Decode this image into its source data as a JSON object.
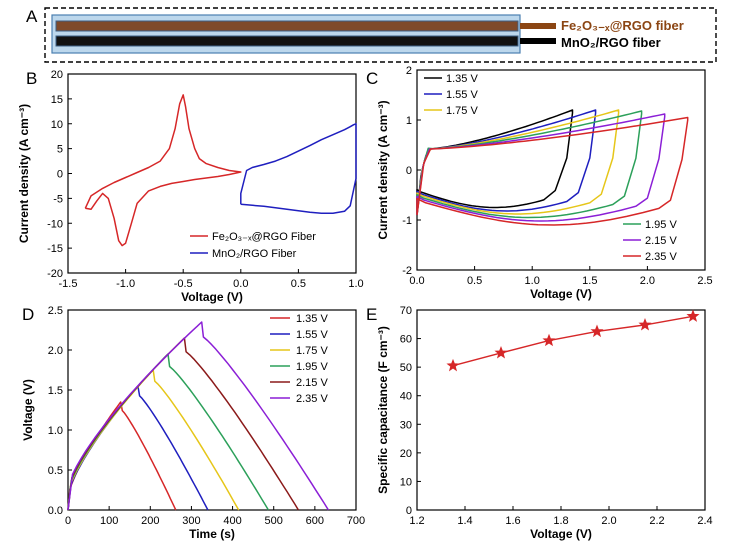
{
  "panel_letters": [
    "A",
    "B",
    "C",
    "D",
    "E"
  ],
  "panel_a": {
    "fibers": [
      {
        "label": "Fe₂O₃₋ₓ@RGO fiber",
        "color": "#8B4513"
      },
      {
        "label": "MnO₂/RGO fiber",
        "color": "#000000"
      }
    ]
  },
  "chart_data": [
    {
      "panel": "B",
      "type": "line",
      "xlabel": "Voltage (V)",
      "ylabel": "Current density (A cm⁻³)",
      "xlim": [
        -1.5,
        1.0
      ],
      "ylim": [
        -20,
        20
      ],
      "xticks": [
        -1.5,
        -1.0,
        -0.5,
        0.0,
        0.5,
        1.0
      ],
      "xtick_labels": [
        "-1.5",
        "-1.0",
        "-0.5",
        "0.0",
        "0.5",
        "1.0"
      ],
      "yticks": [
        -20,
        -15,
        -10,
        -5,
        0,
        5,
        10,
        15,
        20
      ],
      "legend_position": "bottom-right",
      "series": [
        {
          "name": "Fe₂O₃₋ₓ@RGO Fiber",
          "color": "#d62728",
          "x": [
            -1.35,
            -1.3,
            -1.25,
            -1.2,
            -1.15,
            -1.1,
            -1.06,
            -1.03,
            -1.0,
            -0.95,
            -0.9,
            -0.8,
            -0.7,
            -0.6,
            -0.5,
            -0.4,
            -0.3,
            -0.2,
            -0.1,
            0.0,
            -0.1,
            -0.2,
            -0.3,
            -0.36,
            -0.4,
            -0.45,
            -0.48,
            -0.5,
            -0.53,
            -0.57,
            -0.62,
            -0.7,
            -0.8,
            -0.9,
            -1.0,
            -1.1,
            -1.2,
            -1.3,
            -1.35
          ],
          "y": [
            -7,
            -7.2,
            -5.5,
            -4.0,
            -5.0,
            -9.0,
            -13.5,
            -14.5,
            -14.0,
            -10.0,
            -6.0,
            -3.5,
            -2.6,
            -2.0,
            -1.6,
            -1.2,
            -0.9,
            -0.6,
            -0.2,
            0.3,
            0.6,
            1.2,
            2.0,
            3.0,
            5.0,
            9.0,
            13.5,
            15.8,
            14.0,
            9.0,
            5.0,
            2.5,
            1.2,
            0.2,
            -0.8,
            -1.8,
            -3.0,
            -4.5,
            -7
          ]
        },
        {
          "name": "MnO₂/RGO Fiber",
          "color": "#1f1fbf",
          "x": [
            0.0,
            0.05,
            0.1,
            0.2,
            0.3,
            0.4,
            0.5,
            0.6,
            0.7,
            0.8,
            0.9,
            0.95,
            1.0,
            1.0,
            0.98,
            0.95,
            0.9,
            0.8,
            0.7,
            0.6,
            0.5,
            0.4,
            0.3,
            0.2,
            0.1,
            0.05,
            0.0,
            0.0
          ],
          "y": [
            -6.2,
            -6.3,
            -6.4,
            -6.6,
            -6.9,
            -7.2,
            -7.5,
            -7.8,
            -8.0,
            -8.0,
            -7.6,
            -6.5,
            -1.0,
            10.0,
            9.8,
            9.4,
            8.8,
            7.8,
            6.8,
            5.6,
            4.5,
            3.4,
            2.5,
            1.8,
            1.2,
            0.6,
            -4.0,
            -6.2
          ]
        }
      ]
    },
    {
      "panel": "C",
      "type": "line",
      "xlabel": "Voltage (V)",
      "ylabel": "Current density (A cm⁻³)",
      "xlim": [
        0.0,
        2.5
      ],
      "ylim": [
        -2,
        2
      ],
      "xticks": [
        0.0,
        0.5,
        1.0,
        1.5,
        2.0,
        2.5
      ],
      "xtick_labels": [
        "0.0",
        "0.5",
        "1.0",
        "1.5",
        "2.0",
        "2.5"
      ],
      "yticks": [
        -2,
        -1,
        0,
        1,
        2
      ],
      "legend_position": "top-left and bottom-right",
      "series": [
        {
          "name": "1.35 V",
          "color": "#000000",
          "vmax": 1.35,
          "top": 1.2,
          "bottom": -0.75
        },
        {
          "name": "1.55 V",
          "color": "#1f1fbf",
          "vmax": 1.55,
          "top": 1.2,
          "bottom": -0.82
        },
        {
          "name": "1.75 V",
          "color": "#e6c619",
          "vmax": 1.75,
          "top": 1.2,
          "bottom": -0.88
        },
        {
          "name": "1.95 V",
          "color": "#2ca05a",
          "vmax": 1.95,
          "top": 1.18,
          "bottom": -0.95
        },
        {
          "name": "2.15 V",
          "color": "#8b1fd6",
          "vmax": 2.15,
          "top": 1.12,
          "bottom": -1.02
        },
        {
          "name": "2.35 V",
          "color": "#d62728",
          "vmax": 2.35,
          "top": 1.05,
          "bottom": -1.1
        }
      ]
    },
    {
      "panel": "D",
      "type": "line",
      "xlabel": "Time (s)",
      "ylabel": "Voltage (V)",
      "xlim": [
        0,
        700
      ],
      "ylim": [
        0.0,
        2.5
      ],
      "xticks": [
        0,
        100,
        200,
        300,
        400,
        500,
        600,
        700
      ],
      "xtick_labels": [
        "0",
        "100",
        "200",
        "300",
        "400",
        "500",
        "600",
        "700"
      ],
      "yticks": [
        0.0,
        0.5,
        1.0,
        1.5,
        2.0,
        2.5
      ],
      "ytick_labels": [
        "0.0",
        "0.5",
        "1.0",
        "1.5",
        "2.0",
        "2.5"
      ],
      "legend_position": "top-right",
      "series": [
        {
          "name": "1.35 V",
          "color": "#d62728",
          "vmax": 1.35,
          "t_peak": 128,
          "t_end": 262
        },
        {
          "name": "1.55 V",
          "color": "#1f1fbf",
          "vmax": 1.55,
          "t_peak": 170,
          "t_end": 340
        },
        {
          "name": "1.75 V",
          "color": "#e6c619",
          "vmax": 1.75,
          "t_peak": 207,
          "t_end": 415
        },
        {
          "name": "1.95 V",
          "color": "#2ca05a",
          "vmax": 1.95,
          "t_peak": 243,
          "t_end": 487
        },
        {
          "name": "2.15 V",
          "color": "#8b1a1a",
          "vmax": 2.15,
          "t_peak": 283,
          "t_end": 560
        },
        {
          "name": "2.35 V",
          "color": "#8b1fd6",
          "vmax": 2.35,
          "t_peak": 325,
          "t_end": 633
        }
      ]
    },
    {
      "panel": "E",
      "type": "line",
      "xlabel": "Voltage (V)",
      "ylabel": "Specific capacitance (F cm⁻³)",
      "xlim": [
        1.2,
        2.4
      ],
      "ylim": [
        0,
        70
      ],
      "xticks": [
        1.2,
        1.4,
        1.6,
        1.8,
        2.0,
        2.2,
        2.4
      ],
      "xtick_labels": [
        "1.2",
        "1.4",
        "1.6",
        "1.8",
        "2.0",
        "2.2",
        "2.4"
      ],
      "yticks": [
        0,
        10,
        20,
        30,
        40,
        50,
        60,
        70
      ],
      "marker": "star",
      "series": [
        {
          "color": "#d62728",
          "x": [
            1.35,
            1.55,
            1.75,
            1.95,
            2.15,
            2.35
          ],
          "y": [
            50.5,
            55.0,
            59.3,
            62.5,
            64.8,
            67.8
          ]
        }
      ]
    }
  ]
}
